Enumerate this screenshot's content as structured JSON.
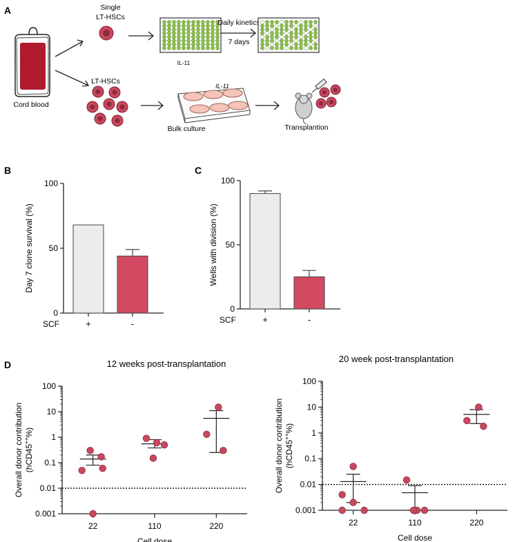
{
  "panel_a": {
    "label": "A",
    "cord_blood": "Cord blood",
    "single_cells": [
      "Single",
      "LT-HSCs"
    ],
    "plate_label": "IL-11",
    "kinetics_label": "Daily kinetics",
    "days_label": "7 days",
    "bulk_cells": "LT-HSCs",
    "bulk_culture": "Bulk culture",
    "dish_label": "IL-11",
    "transplant": "Transplantion",
    "colors": {
      "cell": "#c9485e",
      "well_fill": "#8bc34a",
      "dish": "#f4c4b8",
      "bag": "#b01a2e"
    }
  },
  "panel_b": {
    "label": "B",
    "chart_data": {
      "type": "bar",
      "ylabel": "Day 7 clone survival (%)",
      "ylim": [
        0,
        100
      ],
      "yticks": [
        "0",
        "50",
        "100"
      ],
      "xlabel": "SCF",
      "categories": [
        "+",
        "-"
      ],
      "values": [
        68,
        44
      ],
      "errors": [
        null,
        5
      ],
      "colors": [
        "#ececec",
        "#d24a62"
      ]
    }
  },
  "panel_c": {
    "label": "C",
    "chart_data": {
      "type": "bar",
      "ylabel": "Wells with division (%)",
      "ylim": [
        0,
        100
      ],
      "yticks": [
        "0",
        "50",
        "100"
      ],
      "xlabel": "SCF",
      "categories": [
        "+",
        "-"
      ],
      "values": [
        90,
        25
      ],
      "errors": [
        2,
        5
      ],
      "colors": [
        "#ececec",
        "#d24a62"
      ]
    }
  },
  "panel_d": {
    "label": "D",
    "left": {
      "chart_data": {
        "type": "scatter",
        "title": "12 weeks post-transplantation",
        "ylabel_1": "Overall donor contribution",
        "ylabel_2": "(hCD45",
        "ylabel_sup": "++",
        "ylabel_3": "%)",
        "xlabel": "Cell dose",
        "yscale": "log",
        "ylim": [
          0.001,
          100
        ],
        "yticks": [
          "0.001",
          "0.01",
          "0.1",
          "1",
          "10",
          "100"
        ],
        "threshold": 0.01,
        "categories": [
          "22",
          "110",
          "220"
        ],
        "points": [
          [
            0.3,
            0.17,
            0.06,
            0.05,
            0.001
          ],
          [
            0.9,
            0.6,
            0.5,
            0.15
          ],
          [
            15,
            1.3,
            0.3
          ]
        ],
        "mean": [
          0.14,
          0.55,
          5.5
        ],
        "sem": [
          [
            0.08,
            0.2
          ],
          [
            0.38,
            0.8
          ],
          [
            0.25,
            11
          ]
        ],
        "marker_color": "#c9485e"
      }
    },
    "right": {
      "chart_data": {
        "type": "scatter",
        "title": "20 week post-transplantation",
        "ylabel_1": "Overall donor contribution",
        "ylabel_2": "(hCD45",
        "ylabel_sup": "++",
        "ylabel_3": "%)",
        "xlabel": "Cell dose",
        "yscale": "log",
        "ylim": [
          0.001,
          100
        ],
        "yticks": [
          "0.001",
          "0.01",
          "0.1",
          "1",
          "10",
          "100"
        ],
        "threshold": 0.01,
        "categories": [
          "22",
          "110",
          "220"
        ],
        "points": [
          [
            0.05,
            0.004,
            0.002,
            0.001,
            0.001
          ],
          [
            0.015,
            0.001,
            0.001,
            0.001
          ],
          [
            10,
            3,
            1.8
          ]
        ],
        "mean": [
          0.013,
          0.0048,
          5.2
        ],
        "sem": [
          [
            0.002,
            0.025
          ],
          [
            0.001,
            0.009
          ],
          [
            2.3,
            8
          ]
        ],
        "marker_color": "#c9485e"
      }
    }
  }
}
